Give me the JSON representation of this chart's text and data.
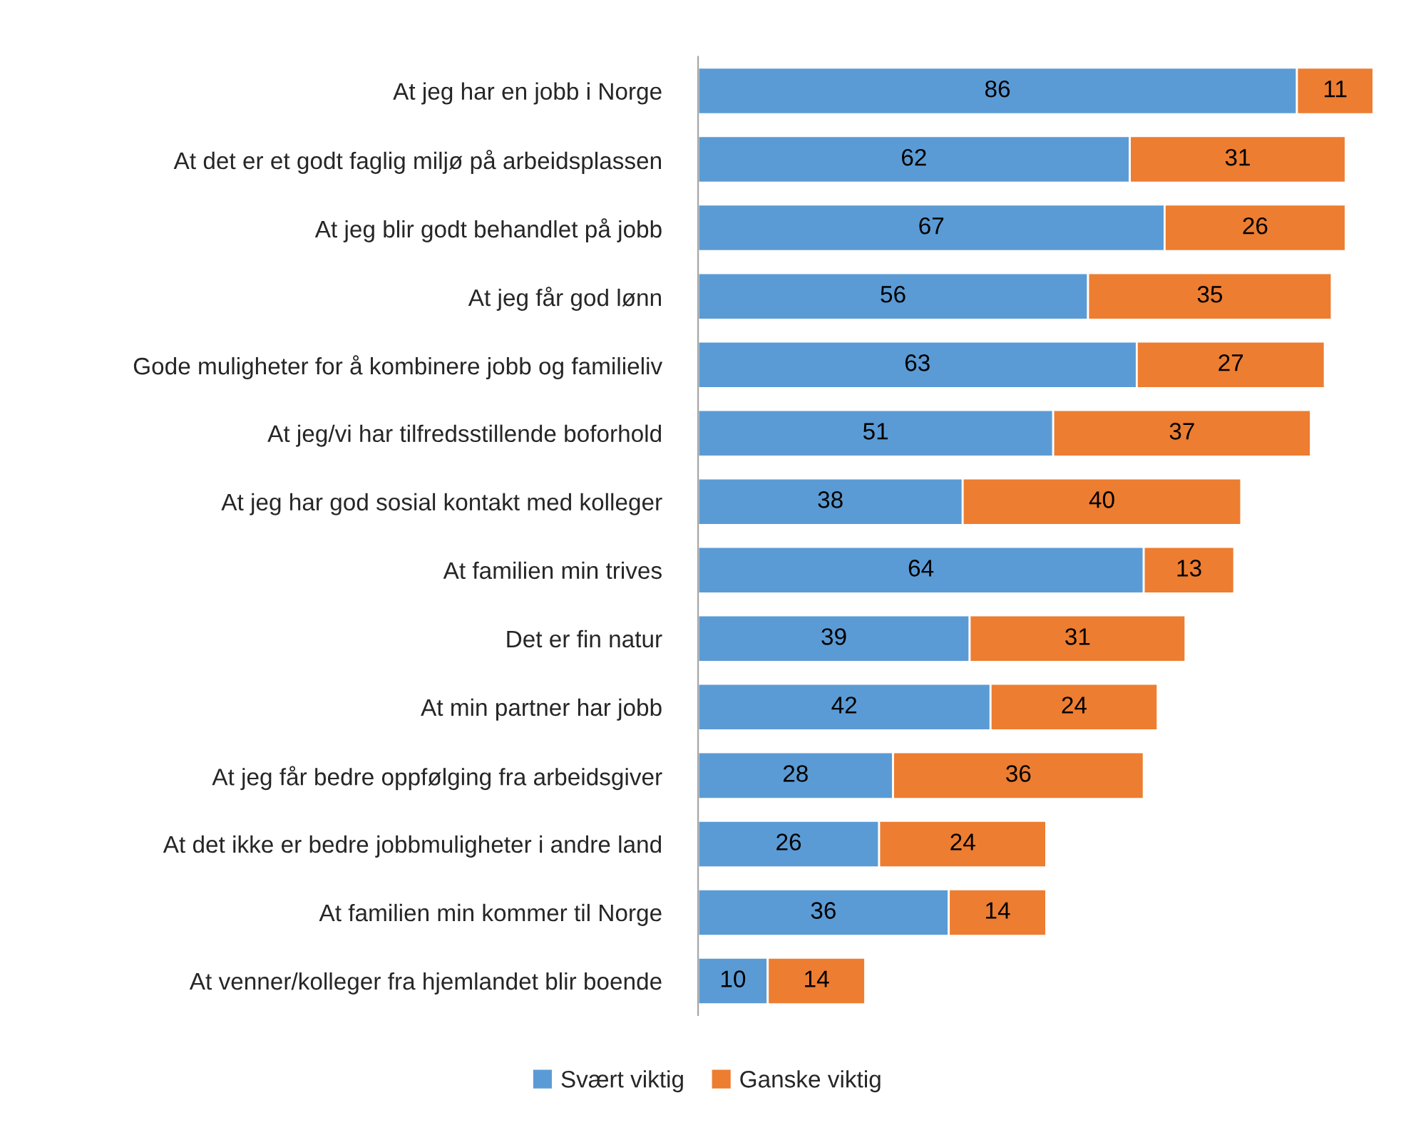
{
  "chart_data": {
    "type": "bar",
    "orientation": "horizontal",
    "stacked": true,
    "data_labels": true,
    "legend": "bottom",
    "grid": false,
    "categories": [
      "At jeg har en jobb i Norge",
      "At det er et godt faglig miljø på arbeidsplassen",
      "At jeg blir godt behandlet på jobb",
      "At jeg får god lønn",
      "Gode muligheter for å kombinere jobb og familieliv",
      "At jeg/vi har tilfredsstillende boforhold",
      "At jeg har god sosial kontakt med kolleger",
      "At familien min trives",
      "Det er fin natur",
      "At min partner har jobb",
      "At jeg får bedre oppfølging fra arbeidsgiver",
      "At det ikke er bedre jobbmuligheter i andre land",
      "At familien min kommer til Norge",
      "At venner/kolleger fra hjemlandet blir boende"
    ],
    "series": [
      {
        "name": "Svært viktig",
        "color": "#5b9bd5",
        "values": [
          86,
          62,
          67,
          56,
          63,
          51,
          38,
          64,
          39,
          42,
          28,
          26,
          36,
          10
        ]
      },
      {
        "name": "Ganske viktig",
        "color": "#ed7d31",
        "values": [
          11,
          31,
          26,
          35,
          27,
          37,
          40,
          13,
          31,
          24,
          36,
          24,
          14,
          14
        ]
      }
    ]
  }
}
